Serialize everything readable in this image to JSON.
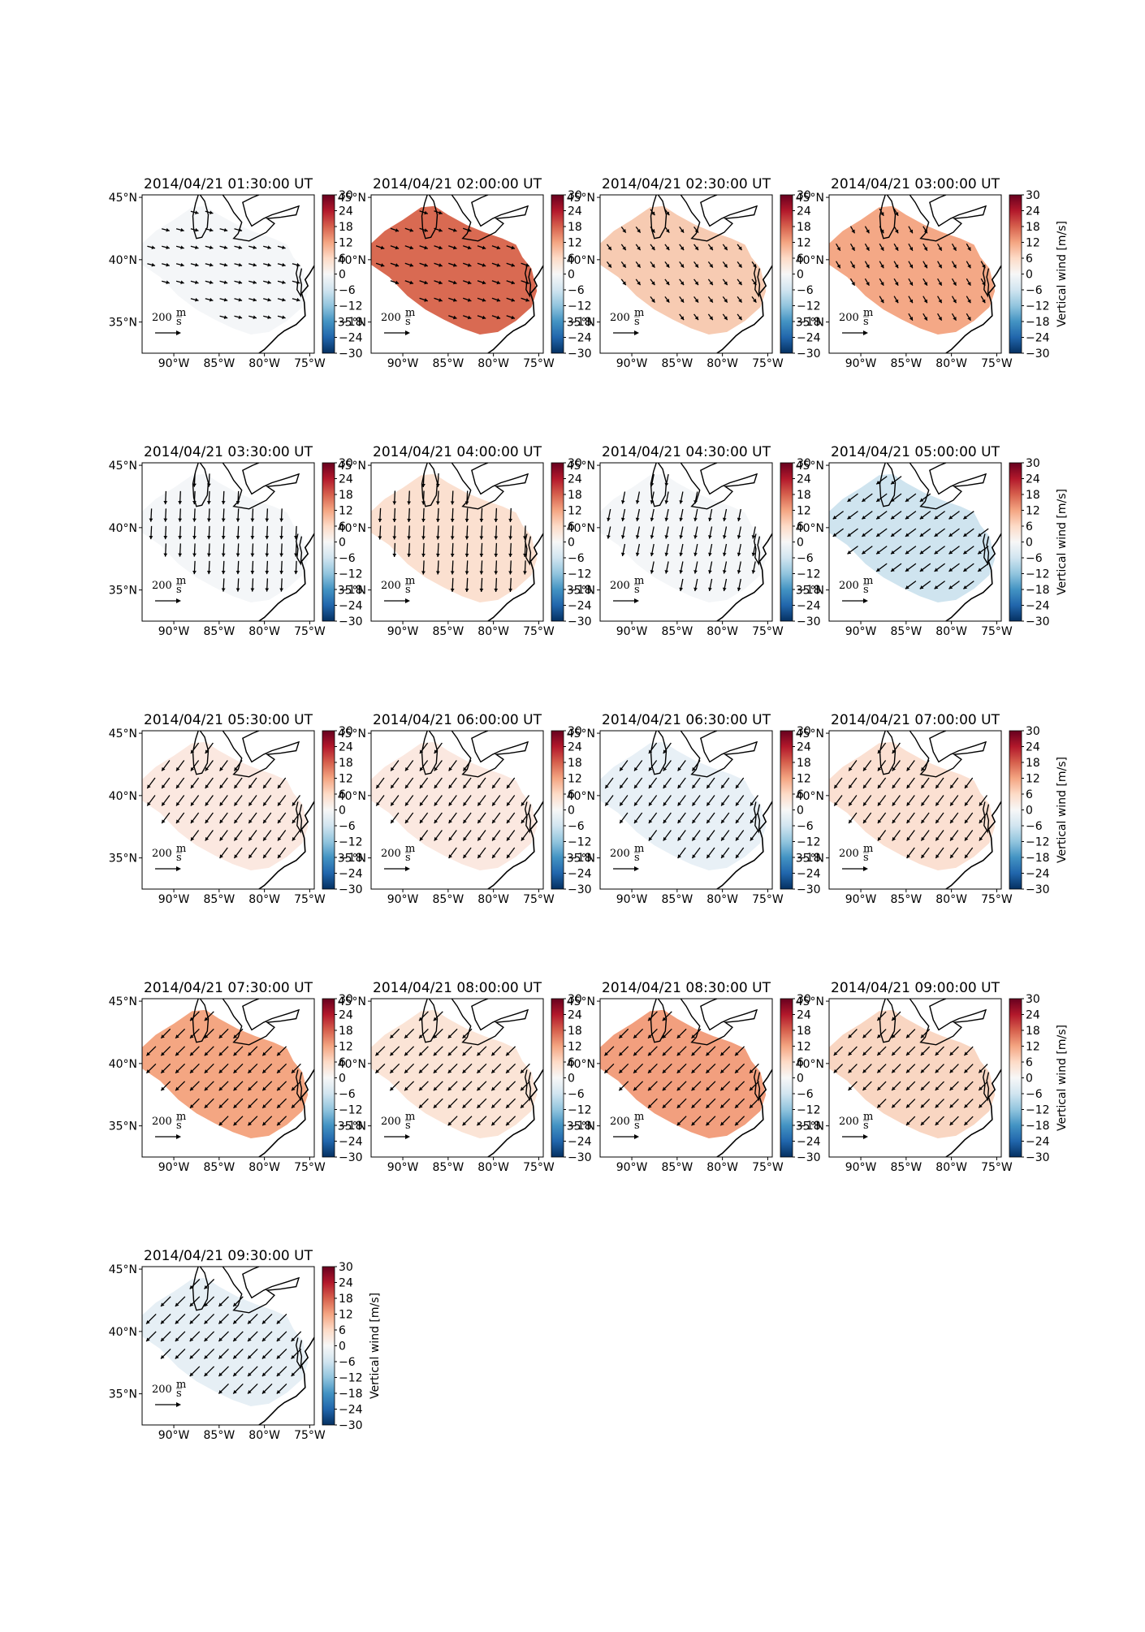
{
  "figure": {
    "colorbar": {
      "label": "Vertical wind [m/s]",
      "ticks": [
        30,
        24,
        18,
        12,
        6,
        0,
        -6,
        -12,
        -18,
        -24,
        -30
      ],
      "range": [
        -30,
        30
      ],
      "colormap": "RdBu_r"
    },
    "axes": {
      "lon_ticks": [
        "90°W",
        "85°W",
        "80°W",
        "75°W"
      ],
      "lat_ticks": [
        "45°N",
        "40°N",
        "35°N"
      ]
    },
    "reference_arrow": {
      "value": "200",
      "unit_num": "m",
      "unit_den": "s"
    }
  },
  "chart_data": [
    {
      "type": "map",
      "title": "2014/04/21 01:30:00 UT",
      "vertical_wind": -1,
      "arrow_dir": [
        1,
        0.25
      ],
      "arrow_len": 0.55,
      "colorbar_label": false,
      "colors": {
        "fill": "#f4f6f8"
      }
    },
    {
      "type": "map",
      "title": "2014/04/21 02:00:00 UT",
      "vertical_wind": 18,
      "arrow_dir": [
        1,
        0.35
      ],
      "arrow_len": 0.6,
      "colorbar_label": false,
      "colors": {
        "fill": "#d96a52"
      }
    },
    {
      "type": "map",
      "title": "2014/04/21 02:30:00 UT",
      "vertical_wind": 6,
      "arrow_dir": [
        0.6,
        0.8
      ],
      "arrow_len": 0.5,
      "colorbar_label": false,
      "colors": {
        "fill": "#f7cbb2"
      }
    },
    {
      "type": "map",
      "title": "2014/04/21 03:00:00 UT",
      "vertical_wind": 9,
      "arrow_dir": [
        0.5,
        0.85
      ],
      "arrow_len": 0.55,
      "colorbar_label": true,
      "colors": {
        "fill": "#f4a886"
      }
    },
    {
      "type": "map",
      "title": "2014/04/21 03:30:00 UT",
      "vertical_wind": -1,
      "arrow_dir": [
        -0.05,
        1
      ],
      "arrow_len": 0.9,
      "colorbar_label": false,
      "colors": {
        "fill": "#f4f6f8"
      }
    },
    {
      "type": "map",
      "title": "2014/04/21 04:00:00 UT",
      "vertical_wind": 4,
      "arrow_dir": [
        -0.05,
        1
      ],
      "arrow_len": 0.95,
      "colorbar_label": false,
      "colors": {
        "fill": "#fbe0d0"
      }
    },
    {
      "type": "map",
      "title": "2014/04/21 04:30:00 UT",
      "vertical_wind": -1,
      "arrow_dir": [
        -0.2,
        1
      ],
      "arrow_len": 0.85,
      "colorbar_label": false,
      "colors": {
        "fill": "#f4f6f8"
      }
    },
    {
      "type": "map",
      "title": "2014/04/21 05:00:00 UT",
      "vertical_wind": -6,
      "arrow_dir": [
        -0.8,
        0.6
      ],
      "arrow_len": 0.9,
      "colorbar_label": true,
      "colors": {
        "fill": "#cfe4ef"
      }
    },
    {
      "type": "map",
      "title": "2014/04/21 05:30:00 UT",
      "vertical_wind": 2,
      "arrow_dir": [
        -0.6,
        0.8
      ],
      "arrow_len": 0.9,
      "colorbar_label": false,
      "colors": {
        "fill": "#fbe8e0"
      }
    },
    {
      "type": "map",
      "title": "2014/04/21 06:00:00 UT",
      "vertical_wind": 2,
      "arrow_dir": [
        -0.6,
        0.8
      ],
      "arrow_len": 0.9,
      "colorbar_label": false,
      "colors": {
        "fill": "#fbe8e0"
      }
    },
    {
      "type": "map",
      "title": "2014/04/21 06:30:00 UT",
      "vertical_wind": -2,
      "arrow_dir": [
        -0.6,
        0.8
      ],
      "arrow_len": 0.9,
      "colorbar_label": false,
      "colors": {
        "fill": "#e8f0f6"
      }
    },
    {
      "type": "map",
      "title": "2014/04/21 07:00:00 UT",
      "vertical_wind": 3,
      "arrow_dir": [
        -0.6,
        0.8
      ],
      "arrow_len": 0.9,
      "colorbar_label": true,
      "colors": {
        "fill": "#fbe0d2"
      }
    },
    {
      "type": "map",
      "title": "2014/04/21 07:30:00 UT",
      "vertical_wind": 10,
      "arrow_dir": [
        -0.7,
        0.7
      ],
      "arrow_len": 0.9,
      "colorbar_label": false,
      "colors": {
        "fill": "#f4a682"
      }
    },
    {
      "type": "map",
      "title": "2014/04/21 08:00:00 UT",
      "vertical_wind": 3,
      "arrow_dir": [
        -0.7,
        0.7
      ],
      "arrow_len": 0.9,
      "colorbar_label": false,
      "colors": {
        "fill": "#fbe4d6"
      }
    },
    {
      "type": "map",
      "title": "2014/04/21 08:30:00 UT",
      "vertical_wind": 11,
      "arrow_dir": [
        -0.7,
        0.7
      ],
      "arrow_len": 0.9,
      "colorbar_label": false,
      "colors": {
        "fill": "#f29f7e"
      }
    },
    {
      "type": "map",
      "title": "2014/04/21 09:00:00 UT",
      "vertical_wind": 5,
      "arrow_dir": [
        -0.7,
        0.7
      ],
      "arrow_len": 0.85,
      "colorbar_label": true,
      "colors": {
        "fill": "#f9d6c2"
      }
    },
    {
      "type": "map",
      "title": "2014/04/21 09:30:00 UT",
      "vertical_wind": -2,
      "arrow_dir": [
        -0.7,
        0.7
      ],
      "arrow_len": 0.95,
      "colorbar_label": true,
      "colors": {
        "fill": "#e6eff5"
      }
    }
  ]
}
